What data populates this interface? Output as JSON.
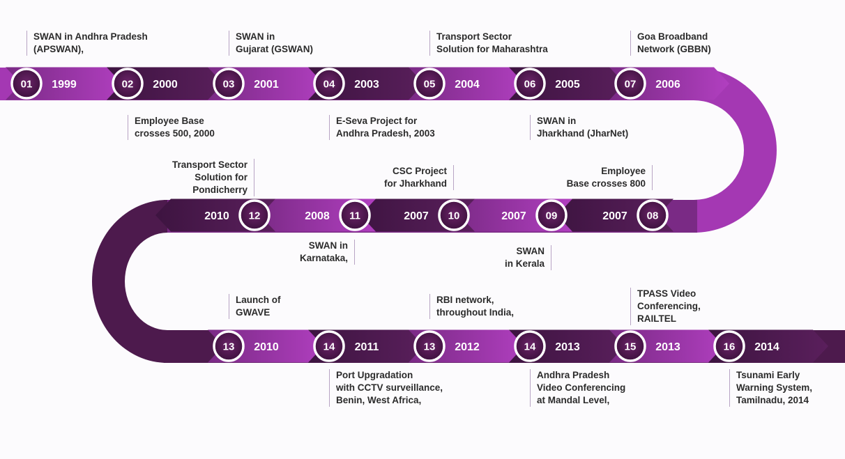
{
  "colors": {
    "dark_band": "#4d1a4d",
    "light_band": "#9b30a8",
    "track": "#a438b3",
    "circle_fill": "#4a1749",
    "circle_ring": "#ffffff",
    "caption_text": "#2b2b2b",
    "caption_rule": "#b8a4c4"
  },
  "milestones": [
    {
      "num": "01",
      "year": "1999",
      "caption": "SWAN in Andhra Pradesh\n(APSWAN),"
    },
    {
      "num": "02",
      "year": "2000",
      "caption": "Employee Base\ncrosses 500, 2000"
    },
    {
      "num": "03",
      "year": "2001",
      "caption": "SWAN in\nGujarat (GSWAN)"
    },
    {
      "num": "04",
      "year": "2003",
      "caption": "E-Seva Project for\nAndhra Pradesh, 2003"
    },
    {
      "num": "05",
      "year": "2004",
      "caption": "Transport Sector\nSolution for Maharashtra"
    },
    {
      "num": "06",
      "year": "2005",
      "caption": "SWAN in\nJharkhand (JharNet)"
    },
    {
      "num": "07",
      "year": "2006",
      "caption": "Goa Broadband\nNetwork (GBBN)"
    },
    {
      "num": "08",
      "year": "2007",
      "caption": "Employee\nBase crosses 800"
    },
    {
      "num": "09",
      "year": "2007",
      "caption": "SWAN\nin Kerala"
    },
    {
      "num": "10",
      "year": "2007",
      "caption": "CSC Project\nfor Jharkhand"
    },
    {
      "num": "11",
      "year": "2008",
      "caption": "SWAN in\nKarnataka,"
    },
    {
      "num": "12",
      "year": "2010",
      "caption": "Transport Sector\nSolution for\nPondicherry"
    },
    {
      "num": "13",
      "year": "2010",
      "caption": "Launch of\nGWAVE"
    },
    {
      "num": "14",
      "year": "2011",
      "caption": "Port Upgradation\nwith CCTV surveillance,\nBenin, West Africa,"
    },
    {
      "num": "13",
      "year": "2012",
      "caption": "RBI network,\nthroughout India,"
    },
    {
      "num": "14",
      "year": "2013",
      "caption": "Andhra Pradesh\nVideo Conferencing\nat Mandal Level,"
    },
    {
      "num": "15",
      "year": "2013",
      "caption": "TPASS Video\nConferencing,\nRAILTEL"
    },
    {
      "num": "16",
      "year": "2014",
      "caption": "Tsunami Early\nWarning System,\nTamilnadu, 2014"
    }
  ]
}
